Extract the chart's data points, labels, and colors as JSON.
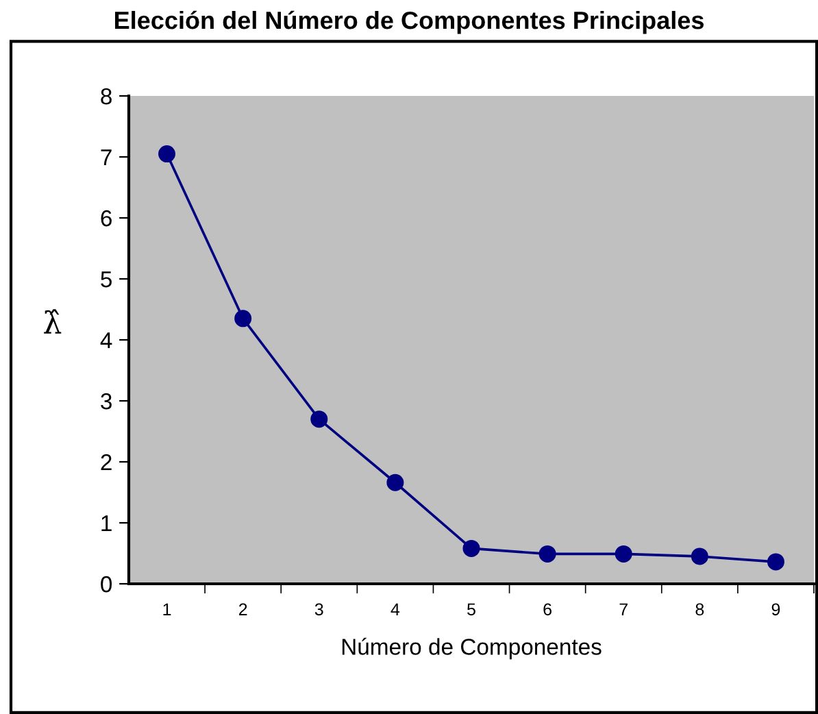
{
  "chart_data": {
    "type": "line",
    "title": "Elección del Número de Componentes Principales",
    "xlabel": "Número de Componentes",
    "ylabel": "λ̂",
    "categories": [
      "1",
      "2",
      "3",
      "4",
      "5",
      "6",
      "7",
      "8",
      "9"
    ],
    "series": [
      {
        "color": "#000080",
        "values": [
          7.05,
          4.35,
          2.7,
          1.66,
          0.58,
          0.49,
          0.49,
          0.45,
          0.36
        ]
      }
    ],
    "ylim": [
      0,
      8
    ],
    "yticks": [
      0,
      1,
      2,
      3,
      4,
      5,
      6,
      7,
      8
    ],
    "marker": "circle",
    "line_style": "solid",
    "grid": false,
    "legend": false
  }
}
